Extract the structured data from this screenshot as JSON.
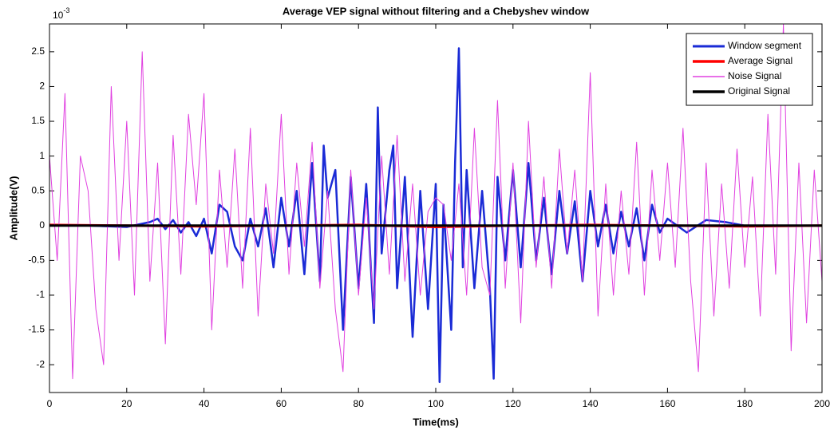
{
  "chart_data": {
    "type": "line",
    "title": "Average VEP signal without filtering and a Chebyshev window",
    "x_label": "Time(ms)",
    "y_label": "Amplitude(V)",
    "y_scale_base": "10",
    "y_scale_power": "-3",
    "xlim": [
      0,
      200
    ],
    "xticks": [
      0,
      20,
      40,
      60,
      80,
      100,
      120,
      140,
      160,
      180,
      200
    ],
    "ylim": [
      -2.4,
      2.9
    ],
    "yticks": [
      -2,
      -1.5,
      -1,
      -0.5,
      0,
      0.5,
      1,
      1.5,
      2,
      2.5
    ],
    "grid": false,
    "legend": "northeast",
    "series": [
      {
        "name": "Window segment",
        "color": "#1a2bd6",
        "width": 2.5,
        "x": [
          0,
          10,
          20,
          26,
          28,
          30,
          32,
          34,
          36,
          38,
          40,
          42,
          44,
          46,
          48,
          50,
          52,
          54,
          56,
          58,
          60,
          62,
          64,
          66,
          68,
          70,
          71,
          72,
          74,
          76,
          78,
          80,
          82,
          84,
          85,
          86,
          88,
          89,
          90,
          92,
          94,
          96,
          98,
          100,
          101,
          102,
          104,
          105,
          106,
          107,
          108,
          110,
          112,
          114,
          115,
          116,
          118,
          120,
          122,
          124,
          126,
          128,
          130,
          132,
          134,
          136,
          138,
          140,
          142,
          144,
          146,
          148,
          150,
          152,
          154,
          156,
          158,
          160,
          165,
          170,
          175,
          180,
          190,
          200
        ],
        "values": [
          0,
          0,
          -0.02,
          0.05,
          0.1,
          -0.05,
          0.08,
          -0.1,
          0.05,
          -0.15,
          0.1,
          -0.4,
          0.3,
          0.2,
          -0.3,
          -0.5,
          0.1,
          -0.3,
          0.25,
          -0.6,
          0.4,
          -0.3,
          0.5,
          -0.7,
          0.9,
          -0.8,
          1.15,
          0.4,
          0.8,
          -1.5,
          0.7,
          -0.9,
          0.6,
          -1.4,
          1.7,
          -0.4,
          0.8,
          1.15,
          -0.9,
          0.7,
          -1.6,
          0.5,
          -1.2,
          0.6,
          -2.25,
          0.3,
          -1.5,
          0.9,
          2.55,
          -0.6,
          0.8,
          -0.9,
          0.5,
          -0.9,
          -2.2,
          0.7,
          -0.5,
          0.8,
          -0.6,
          0.9,
          -0.5,
          0.4,
          -0.7,
          0.5,
          -0.4,
          0.35,
          -0.8,
          0.5,
          -0.3,
          0.3,
          -0.4,
          0.2,
          -0.3,
          0.25,
          -0.5,
          0.3,
          -0.1,
          0.1,
          -0.1,
          0.08,
          0.05,
          0,
          0,
          0
        ]
      },
      {
        "name": "Average Signal",
        "color": "#ff0000",
        "width": 3,
        "x": [
          0,
          20,
          40,
          60,
          80,
          100,
          120,
          140,
          160,
          180,
          200
        ],
        "values": [
          0.01,
          0,
          -0.01,
          0,
          0.01,
          -0.02,
          0,
          0.01,
          0,
          -0.01,
          0
        ]
      },
      {
        "name": "Noise Signal",
        "color": "#e040e0",
        "width": 1,
        "x": [
          0,
          2,
          4,
          6,
          8,
          10,
          12,
          14,
          16,
          18,
          20,
          22,
          24,
          26,
          28,
          30,
          32,
          34,
          36,
          38,
          40,
          42,
          44,
          46,
          48,
          50,
          52,
          54,
          56,
          58,
          60,
          62,
          64,
          66,
          68,
          70,
          72,
          74,
          76,
          78,
          80,
          82,
          84,
          86,
          88,
          90,
          92,
          94,
          96,
          98,
          100,
          102,
          104,
          106,
          108,
          110,
          112,
          114,
          116,
          118,
          120,
          122,
          124,
          126,
          128,
          130,
          132,
          134,
          136,
          138,
          140,
          142,
          144,
          146,
          148,
          150,
          152,
          154,
          156,
          158,
          160,
          162,
          164,
          166,
          168,
          170,
          172,
          174,
          176,
          178,
          180,
          182,
          184,
          186,
          188,
          190,
          192,
          194,
          196,
          198,
          200
        ],
        "values": [
          1.0,
          -0.5,
          1.9,
          -2.2,
          1.0,
          0.5,
          -1.2,
          -2.0,
          2.0,
          -0.5,
          1.5,
          -1.0,
          2.5,
          -0.8,
          0.9,
          -1.7,
          1.3,
          -0.7,
          1.6,
          0.3,
          1.9,
          -1.5,
          0.8,
          -0.6,
          1.1,
          -0.9,
          1.4,
          -1.3,
          0.6,
          -0.4,
          1.6,
          -0.7,
          0.9,
          -0.3,
          1.2,
          -0.9,
          0.5,
          -1.2,
          -2.1,
          0.8,
          -1.0,
          0.4,
          -1.2,
          1.0,
          -0.7,
          1.3,
          -0.8,
          0.6,
          -1.0,
          0.2,
          0.4,
          0.3,
          -0.5,
          0.6,
          -1.0,
          1.4,
          -0.6,
          -1.0,
          1.8,
          -0.9,
          0.9,
          -1.4,
          1.5,
          -0.6,
          0.7,
          -0.9,
          1.1,
          -0.4,
          0.8,
          -0.8,
          2.2,
          -1.3,
          0.6,
          -1.0,
          0.5,
          -0.7,
          1.2,
          -1.0,
          0.8,
          -0.5,
          0.9,
          -0.6,
          1.4,
          -0.8,
          -2.1,
          0.9,
          -1.3,
          0.6,
          -0.9,
          1.1,
          -0.6,
          0.7,
          -1.3,
          1.6,
          -0.7,
          2.9,
          -1.8,
          0.9,
          -1.4,
          0.8,
          -0.8
        ]
      },
      {
        "name": "Original Signal",
        "color": "#000000",
        "width": 3,
        "x": [
          0,
          20,
          40,
          60,
          80,
          100,
          120,
          140,
          160,
          180,
          200
        ],
        "values": [
          0,
          0,
          0,
          0,
          0,
          0,
          0,
          0,
          0,
          0,
          0
        ]
      }
    ]
  }
}
